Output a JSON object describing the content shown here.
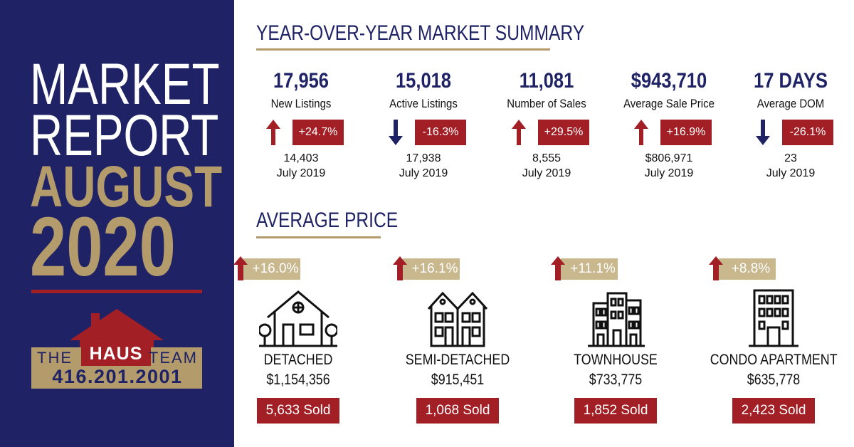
{
  "colors": {
    "navy": "#1f2366",
    "gold": "#b39b6c",
    "red": "#a31f26",
    "light_gold": "#c9b78e"
  },
  "hero": {
    "line1": "MARKET",
    "line2": "REPORT",
    "month": "AUGUST",
    "year": "2020"
  },
  "logo": {
    "the": "THE",
    "haus": "HAUS",
    "team": "TEAM",
    "phone": "416.201.2001"
  },
  "summary": {
    "title": "YEAR-OVER-YEAR MARKET SUMMARY",
    "stats": [
      {
        "value": "17,956",
        "label": "New Listings",
        "change": "+24.7%",
        "direction": "up",
        "prev_value": "14,403",
        "prev_period": "July 2019"
      },
      {
        "value": "15,018",
        "label": "Active Listings",
        "change": "-16.3%",
        "direction": "down",
        "prev_value": "17,938",
        "prev_period": "July 2019"
      },
      {
        "value": "11,081",
        "label": "Number of Sales",
        "change": "+29.5%",
        "direction": "up",
        "prev_value": "8,555",
        "prev_period": "July 2019"
      },
      {
        "value": "$943,710",
        "label": "Average Sale Price",
        "change": "+16.9%",
        "direction": "up",
        "prev_value": "$806,971",
        "prev_period": "July 2019"
      },
      {
        "value": "17 DAYS",
        "label": "Average DOM",
        "change": "-26.1%",
        "direction": "down",
        "prev_value": "23",
        "prev_period": "July 2019"
      }
    ]
  },
  "avg_price": {
    "title": "AVERAGE PRICE",
    "types": [
      {
        "name": "DETACHED",
        "price": "$1,154,356",
        "change": "+16.0%",
        "sold": "5,633 Sold",
        "icon": "detached-house-icon"
      },
      {
        "name": "SEMI-DETACHED",
        "price": "$915,451",
        "change": "+16.1%",
        "sold": "1,068 Sold",
        "icon": "semi-detached-house-icon"
      },
      {
        "name": "TOWNHOUSE",
        "price": "$733,775",
        "change": "+11.1%",
        "sold": "1,852 Sold",
        "icon": "townhouse-icon"
      },
      {
        "name": "CONDO APARTMENT",
        "price": "$635,778",
        "change": "+8.8%",
        "sold": "2,423 Sold",
        "icon": "condo-building-icon"
      }
    ]
  }
}
